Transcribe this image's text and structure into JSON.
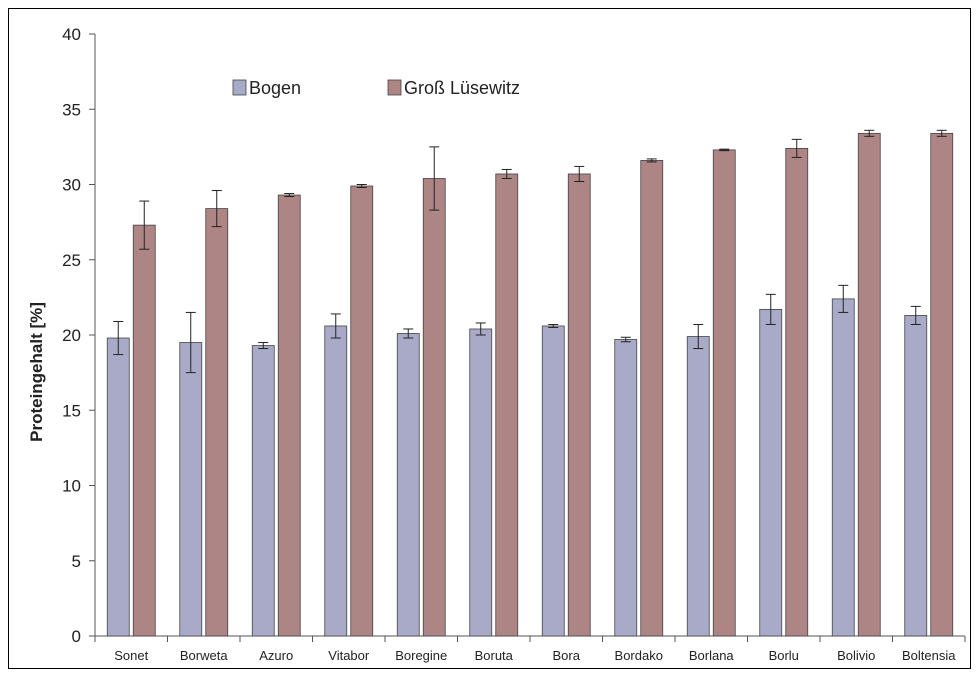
{
  "chart_data": {
    "type": "bar",
    "title": "",
    "xlabel": "",
    "ylabel": "Proteingehalt [%]",
    "ylim": [
      0,
      40
    ],
    "yticks": [
      0,
      5,
      10,
      15,
      20,
      25,
      30,
      35,
      40
    ],
    "grid": false,
    "legend_position": "top-left",
    "categories": [
      "Sonet",
      "Borweta",
      "Azuro",
      "Vitabor",
      "Boregine",
      "Boruta",
      "Bora",
      "Bordako",
      "Borlana",
      "Borlu",
      "Bolivio",
      "Boltensia"
    ],
    "series": [
      {
        "name": "Bogen",
        "color": "#a9aac8",
        "values": [
          19.8,
          19.5,
          19.3,
          20.6,
          20.1,
          20.4,
          20.6,
          19.7,
          19.9,
          21.7,
          22.4,
          21.3
        ],
        "errors": [
          1.1,
          2.0,
          0.2,
          0.8,
          0.3,
          0.4,
          0.1,
          0.15,
          0.8,
          1.0,
          0.9,
          0.6
        ]
      },
      {
        "name": "Groß Lüsewitz",
        "color": "#ad8585",
        "values": [
          27.3,
          28.4,
          29.3,
          29.9,
          30.4,
          30.7,
          30.7,
          31.6,
          32.3,
          32.4,
          33.4,
          33.4
        ],
        "errors": [
          1.6,
          1.2,
          0.1,
          0.1,
          2.1,
          0.3,
          0.5,
          0.1,
          0.05,
          0.6,
          0.2,
          0.2
        ]
      }
    ]
  }
}
